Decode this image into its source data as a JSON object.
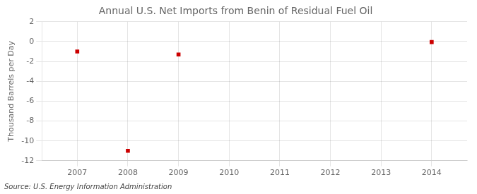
{
  "chart_data": {
    "type": "scatter",
    "title": "Annual U.S. Net Imports from Benin of Residual Fuel Oil",
    "ylabel": "Thousand Barrels per Day",
    "annotations": [
      "Source: U.S. Energy Information Administration"
    ],
    "x": [
      2007,
      2008,
      2009,
      2014
    ],
    "values": [
      -1.0,
      -11.0,
      -1.3,
      -0.05
    ],
    "color": "#cc0000",
    "marker": "square",
    "xlim": [
      2006.3,
      2014.7
    ],
    "ylim": [
      -12,
      2
    ],
    "xticks": [
      2007,
      2008,
      2009,
      2010,
      2011,
      2012,
      2013,
      2014
    ],
    "yticks": [
      2,
      0,
      -2,
      -4,
      -6,
      -8,
      -10,
      -12
    ],
    "grid": true
  }
}
